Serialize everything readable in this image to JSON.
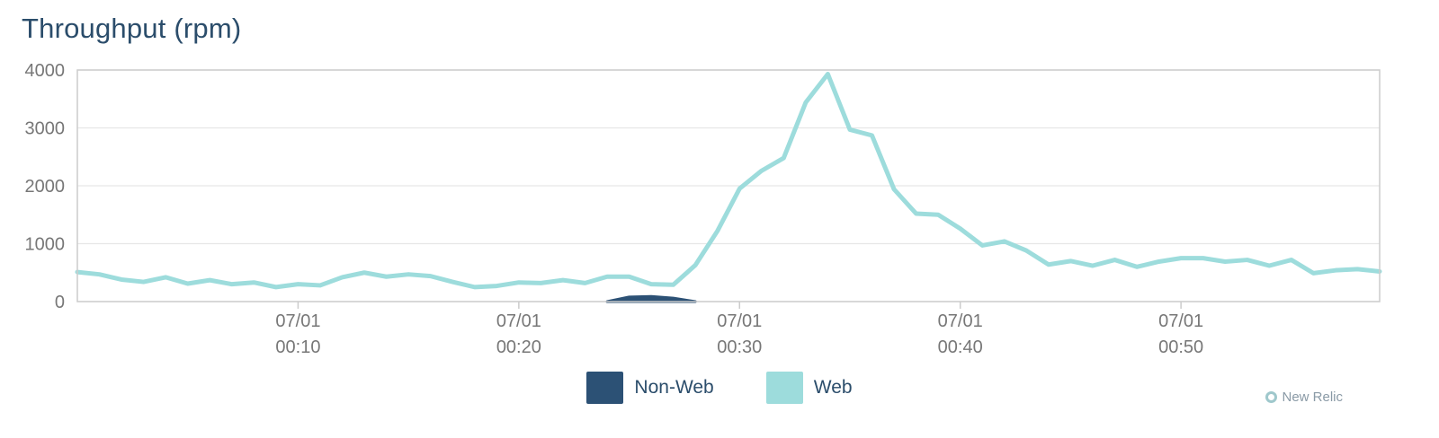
{
  "title": "Throughput (rpm)",
  "brand": {
    "label": "New Relic",
    "icon": "new-relic-logo-icon"
  },
  "colors": {
    "web": "#9ddcdc",
    "non_web": "#2c5175",
    "grid": "#e6e6e6",
    "axis": "#cccccc"
  },
  "chart_data": {
    "type": "line",
    "title": "Throughput (rpm)",
    "xlabel": "",
    "ylabel": "",
    "xlim": [
      0,
      59
    ],
    "ylim": [
      0,
      4000
    ],
    "y_ticks": [
      "0",
      "1000",
      "2000",
      "3000",
      "4000"
    ],
    "y_tick_values": [
      0,
      1000,
      2000,
      3000,
      4000
    ],
    "x_ticks": [
      {
        "date": "07/01",
        "time": "00:10",
        "minute": 10
      },
      {
        "date": "07/01",
        "time": "00:20",
        "minute": 20
      },
      {
        "date": "07/01",
        "time": "00:30",
        "minute": 30
      },
      {
        "date": "07/01",
        "time": "00:40",
        "minute": 40
      },
      {
        "date": "07/01",
        "time": "00:50",
        "minute": 50
      }
    ],
    "grid": true,
    "legend_position": "bottom-center",
    "series": [
      {
        "name": "Web",
        "color": "#9ddcdc",
        "x": [
          0,
          1,
          2,
          3,
          4,
          5,
          6,
          7,
          8,
          9,
          10,
          11,
          12,
          13,
          14,
          15,
          16,
          17,
          18,
          19,
          20,
          21,
          22,
          23,
          24,
          25,
          26,
          27,
          28,
          29,
          30,
          31,
          32,
          33,
          34,
          35,
          36,
          37,
          38,
          39,
          40,
          41,
          42,
          43,
          44,
          45,
          46,
          47,
          48,
          49,
          50,
          51,
          52,
          53,
          54,
          55,
          56,
          57,
          58,
          59
        ],
        "values": [
          510,
          470,
          380,
          340,
          420,
          310,
          370,
          300,
          330,
          250,
          300,
          280,
          420,
          500,
          430,
          470,
          440,
          340,
          250,
          270,
          330,
          320,
          370,
          320,
          430,
          430,
          300,
          290,
          630,
          1220,
          1950,
          2260,
          2480,
          3440,
          3930,
          2970,
          2870,
          1940,
          1520,
          1500,
          1260,
          970,
          1040,
          880,
          640,
          700,
          620,
          720,
          600,
          690,
          750,
          750,
          690,
          720,
          620,
          720,
          490,
          540,
          560,
          520
        ]
      },
      {
        "name": "Non-Web",
        "color": "#2c5175",
        "x": [
          24,
          25,
          26,
          27,
          28
        ],
        "values": [
          0,
          80,
          90,
          60,
          0
        ]
      }
    ]
  }
}
